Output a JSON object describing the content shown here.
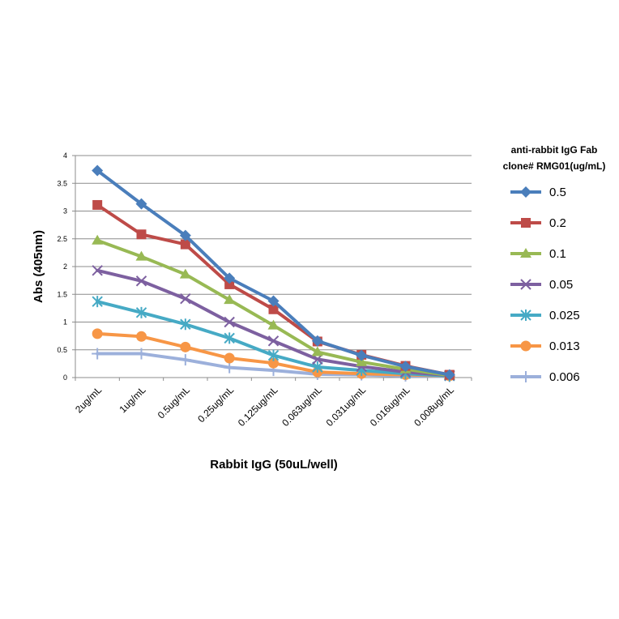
{
  "chart_data": {
    "type": "line",
    "xlabel": "Rabbit IgG (50uL/well)",
    "ylabel": "Abs (405nm)",
    "ylim": [
      0,
      4
    ],
    "yticks": [
      "0",
      "0.5",
      "1",
      "1.5",
      "2",
      "2.5",
      "3",
      "3.5",
      "4"
    ],
    "grid": true,
    "legend_position": "right",
    "legend_title": [
      "anti-rabbit IgG Fab",
      "clone# RMG01(ug/mL)"
    ],
    "categories": [
      "2ug/mL",
      "1ug/mL",
      "0.5ug/mL",
      "0.25ug/mL",
      "0.125ug/mL",
      "0.063ug/mL",
      "0.031ug/mL",
      "0.016ug/mL",
      "0.008ug/mL"
    ],
    "series": [
      {
        "name": "0.5",
        "color": "#4A7EBB",
        "marker": "diamond",
        "values": [
          3.73,
          3.13,
          2.56,
          1.79,
          1.38,
          0.66,
          0.4,
          0.2,
          0.05
        ]
      },
      {
        "name": "0.2",
        "color": "#BE4B48",
        "marker": "square",
        "values": [
          3.11,
          2.58,
          2.4,
          1.68,
          1.23,
          0.65,
          0.41,
          0.21,
          0.05
        ]
      },
      {
        "name": "0.1",
        "color": "#98B954",
        "marker": "triangle",
        "values": [
          2.47,
          2.18,
          1.86,
          1.4,
          0.94,
          0.46,
          0.28,
          0.15,
          0.04
        ]
      },
      {
        "name": "0.05",
        "color": "#7D60A0",
        "marker": "x",
        "values": [
          1.93,
          1.74,
          1.42,
          1.0,
          0.66,
          0.33,
          0.2,
          0.1,
          0.04
        ]
      },
      {
        "name": "0.025",
        "color": "#46AAC5",
        "marker": "asterisk",
        "values": [
          1.37,
          1.17,
          0.96,
          0.71,
          0.4,
          0.19,
          0.13,
          0.07,
          0.03
        ]
      },
      {
        "name": "0.013",
        "color": "#F79646",
        "marker": "circle",
        "values": [
          0.79,
          0.74,
          0.55,
          0.35,
          0.26,
          0.1,
          0.07,
          0.05,
          0.03
        ]
      },
      {
        "name": "0.006",
        "color": "#9CB0DB",
        "marker": "plus",
        "values": [
          0.43,
          0.43,
          0.32,
          0.18,
          0.13,
          0.06,
          0.05,
          0.03,
          0.02
        ]
      }
    ]
  }
}
